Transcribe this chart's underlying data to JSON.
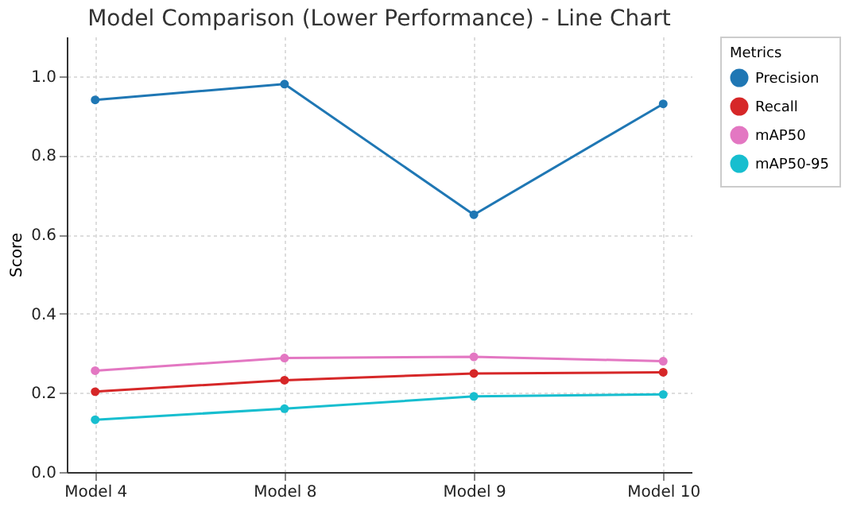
{
  "chart_data": {
    "type": "line",
    "title": "Model Comparison (Lower Performance) - Line Chart",
    "ylabel": "Score",
    "legend_title": "Metrics",
    "categories": [
      "Model 4",
      "Model 8",
      "Model 9",
      "Model 10"
    ],
    "series": [
      {
        "name": "Precision",
        "color": "#1f77b4",
        "values": [
          0.94,
          0.98,
          0.65,
          0.93
        ]
      },
      {
        "name": "Recall",
        "color": "#d62728",
        "values": [
          0.203,
          0.232,
          0.249,
          0.252
        ]
      },
      {
        "name": "mAP50",
        "color": "#e377c2",
        "values": [
          0.256,
          0.288,
          0.291,
          0.28
        ]
      },
      {
        "name": "mAP50-95",
        "color": "#17becf",
        "values": [
          0.132,
          0.16,
          0.191,
          0.196
        ]
      }
    ],
    "ylim": [
      0,
      1.1
    ],
    "yticks": [
      {
        "value": 0,
        "label": "0.0"
      },
      0.2,
      0.4,
      0.6,
      0.8,
      {
        "value": 1,
        "label": "1.0"
      }
    ],
    "grid": true,
    "legend": "right",
    "marker": "circle",
    "line_style": "solid"
  }
}
